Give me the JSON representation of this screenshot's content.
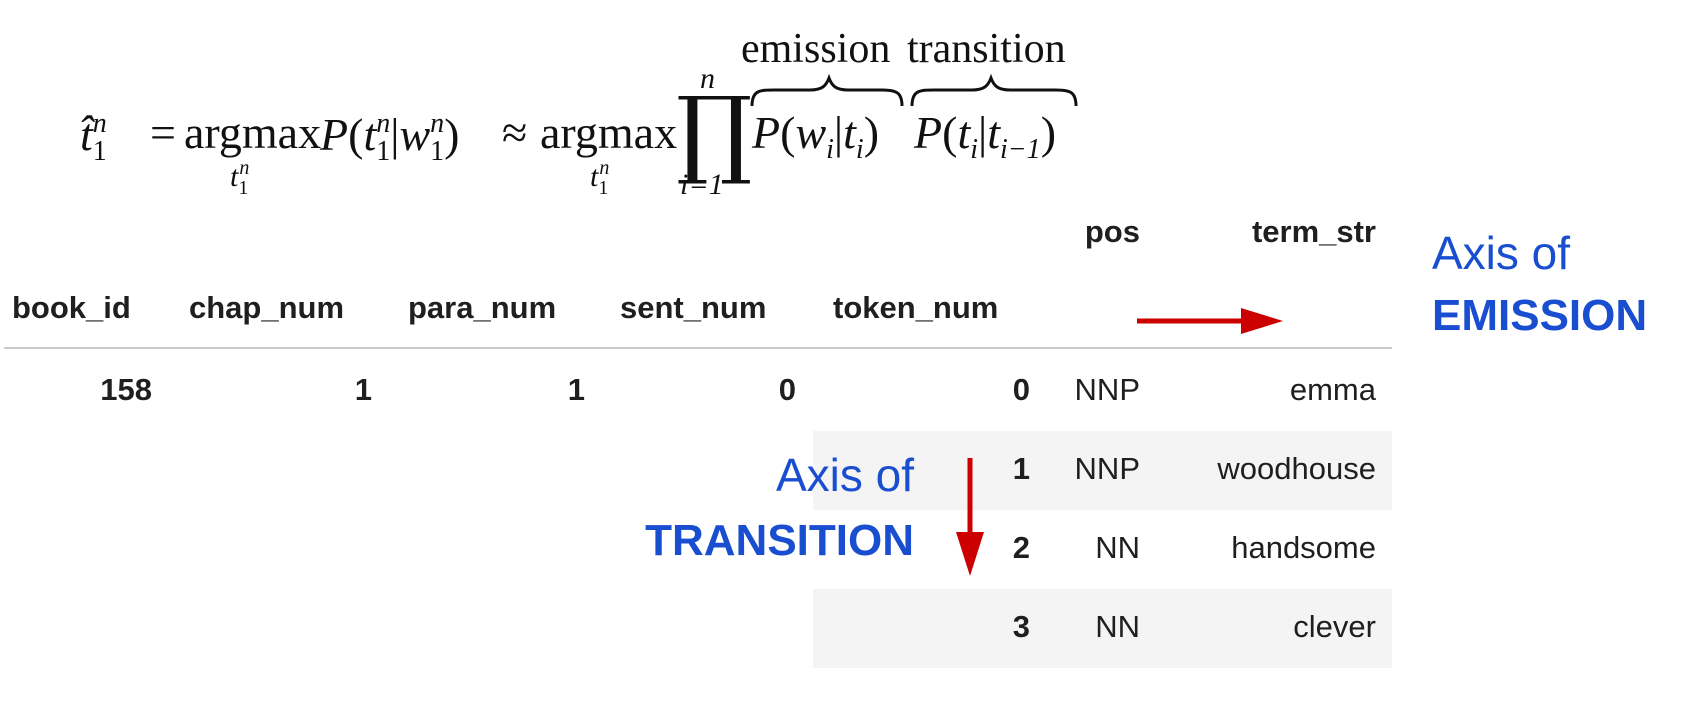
{
  "formula": {
    "hat_t": "t̂",
    "one": "1",
    "n": "n",
    "equals": "=",
    "argmax": "argmax",
    "P": "P",
    "t": "t",
    "w": "w",
    "bar": "|",
    "lparen": "(",
    "rparen": ")",
    "approx": "≈",
    "prod": "∏",
    "i_eq_1": "i=1",
    "i": "i",
    "i_minus_1": "i−1",
    "emission_label": "emission",
    "transition_label": "transition"
  },
  "table": {
    "columns_top": [
      "pos",
      "term_str"
    ],
    "index_names": [
      "book_id",
      "chap_num",
      "para_num",
      "sent_num",
      "token_num"
    ],
    "first_row_index": [
      "158",
      "1",
      "1",
      "0"
    ],
    "rows": [
      {
        "token_num": "0",
        "pos": "NNP",
        "term_str": "emma"
      },
      {
        "token_num": "1",
        "pos": "NNP",
        "term_str": "woodhouse"
      },
      {
        "token_num": "2",
        "pos": "NN",
        "term_str": "handsome"
      },
      {
        "token_num": "3",
        "pos": "NN",
        "term_str": "clever"
      }
    ]
  },
  "annotations": {
    "emission_axis": {
      "line1": "Axis of",
      "line2": "EMISSION"
    },
    "transition_axis": {
      "line1": "Axis of",
      "line2": "TRANSITION"
    }
  },
  "colors": {
    "annotation_text": "#1a4ed0",
    "arrow": "#cc0000",
    "stripe": "#f4f4f4",
    "rule": "#c9c9c9"
  }
}
